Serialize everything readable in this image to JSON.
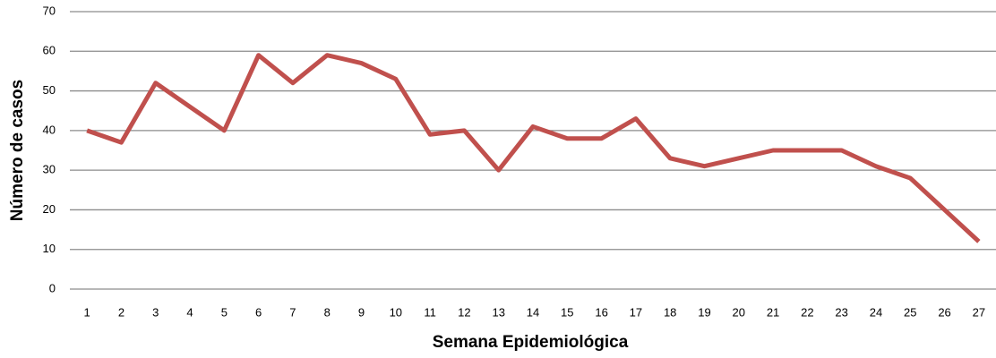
{
  "chart_data": {
    "type": "line",
    "x_label": "Semana Epidemiológica",
    "y_label": "Número de casos",
    "categories": [
      "1",
      "2",
      "3",
      "4",
      "5",
      "6",
      "7",
      "8",
      "9",
      "10",
      "11",
      "12",
      "13",
      "14",
      "15",
      "16",
      "17",
      "18",
      "19",
      "20",
      "21",
      "22",
      "23",
      "24",
      "25",
      "26",
      "27"
    ],
    "values": [
      40,
      37,
      52,
      46,
      40,
      59,
      52,
      59,
      57,
      53,
      39,
      40,
      30,
      41,
      38,
      38,
      43,
      33,
      31,
      33,
      35,
      35,
      35,
      31,
      28,
      20,
      12
    ],
    "color": "#c0504d",
    "ylim": [
      0,
      70
    ],
    "yticks": [
      0,
      10,
      20,
      30,
      40,
      50,
      60,
      70
    ],
    "grid": true
  }
}
